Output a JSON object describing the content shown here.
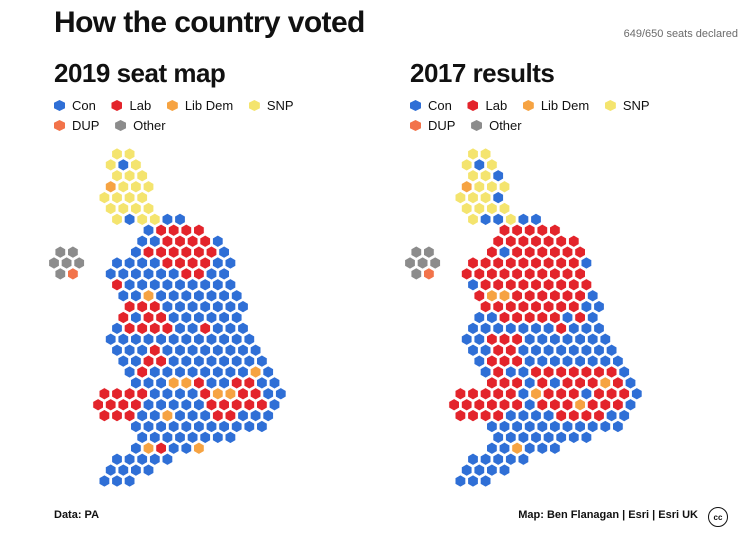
{
  "header": {
    "title": "How the country voted",
    "seats_declared": "649/650 seats declared"
  },
  "panels": [
    {
      "id": "2019",
      "title": "2019 seat map"
    },
    {
      "id": "2017",
      "title": "2017 results"
    }
  ],
  "legend": [
    {
      "label": "Con",
      "color": "#2f6fd6"
    },
    {
      "label": "Lab",
      "color": "#e3242b"
    },
    {
      "label": "Lib Dem",
      "color": "#f6a342"
    },
    {
      "label": "SNP",
      "color": "#f4e46e"
    },
    {
      "label": "DUP",
      "color": "#f2734a"
    },
    {
      "label": "Other",
      "color": "#8c8c8c"
    }
  ],
  "footer": {
    "source": "Data: PA",
    "credit": "Map: Ben Flanagan | Esri | Esri UK",
    "cc_label": "cc"
  }
}
